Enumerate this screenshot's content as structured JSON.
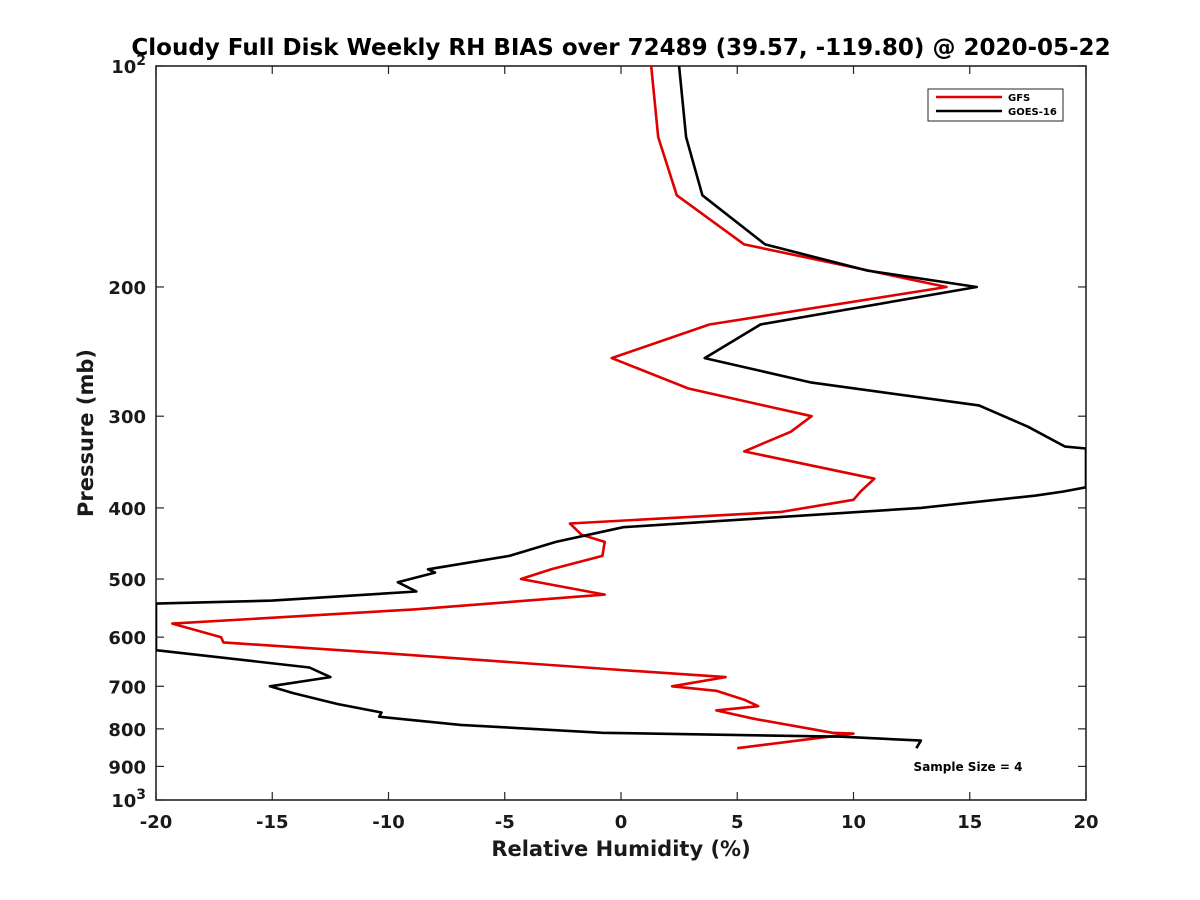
{
  "chart_data": {
    "type": "line",
    "title": "Cloudy Full Disk Weekly RH BIAS over 72489 (39.57, -119.80) @ 2020-05-22",
    "xlabel": "Relative Humidity (%)",
    "ylabel": "Pressure (mb)",
    "xlim": [
      -20,
      20
    ],
    "ylim": [
      100,
      1000
    ],
    "y_scale": "log",
    "y_reversed": true,
    "grid": false,
    "legend_position": "top-right",
    "x_ticks": [
      "-20",
      "-15",
      "-10",
      "-5",
      "0",
      "5",
      "10",
      "15",
      "20"
    ],
    "y_ticks": [
      {
        "value": 100,
        "base": "10",
        "exp": "2"
      },
      {
        "value": 200,
        "label": "200"
      },
      {
        "value": 300,
        "label": "300"
      },
      {
        "value": 400,
        "label": "400"
      },
      {
        "value": 500,
        "label": "500"
      },
      {
        "value": 600,
        "label": "600"
      },
      {
        "value": 700,
        "label": "700"
      },
      {
        "value": 800,
        "label": "800"
      },
      {
        "value": 900,
        "label": "900"
      },
      {
        "value": 1000,
        "base": "10",
        "exp": "3"
      }
    ],
    "series": [
      {
        "name": "GFS",
        "color": "#e00000",
        "points": [
          [
            1.3,
            100
          ],
          [
            1.6,
            125
          ],
          [
            2.4,
            150
          ],
          [
            5.3,
            175
          ],
          [
            14.0,
            200
          ],
          [
            3.8,
            225
          ],
          [
            -0.4,
            250
          ],
          [
            2.9,
            275
          ],
          [
            8.2,
            300
          ],
          [
            7.3,
            315
          ],
          [
            5.3,
            335
          ],
          [
            10.9,
            365
          ],
          [
            10.3,
            380
          ],
          [
            10.0,
            390
          ],
          [
            6.9,
            405
          ],
          [
            -2.2,
            420
          ],
          [
            -1.7,
            435
          ],
          [
            -0.7,
            445
          ],
          [
            -0.8,
            465
          ],
          [
            -3.0,
            485
          ],
          [
            -4.3,
            500
          ],
          [
            -0.7,
            525
          ],
          [
            -8.9,
            550
          ],
          [
            -19.3,
            575
          ],
          [
            -17.2,
            600
          ],
          [
            -17.1,
            610
          ],
          [
            -10.5,
            630
          ],
          [
            0.0,
            665
          ],
          [
            4.5,
            680
          ],
          [
            2.2,
            700
          ],
          [
            4.1,
            710
          ],
          [
            5.3,
            730
          ],
          [
            5.9,
            745
          ],
          [
            4.1,
            755
          ],
          [
            5.7,
            775
          ],
          [
            9.1,
            810
          ],
          [
            10.0,
            812
          ],
          [
            5.0,
            850
          ]
        ]
      },
      {
        "name": "GOES-16",
        "color": "#000000",
        "points": [
          [
            2.5,
            100
          ],
          [
            2.8,
            125
          ],
          [
            3.5,
            150
          ],
          [
            6.2,
            175
          ],
          [
            10.6,
            190
          ],
          [
            15.3,
            200
          ],
          [
            6.0,
            225
          ],
          [
            3.6,
            250
          ],
          [
            8.2,
            270
          ],
          [
            15.4,
            290
          ],
          [
            17.5,
            310
          ],
          [
            19.1,
            330
          ],
          [
            20.0,
            332
          ],
          [
            20.0,
            375
          ],
          [
            19.0,
            380
          ],
          [
            17.8,
            385
          ],
          [
            12.9,
            400
          ],
          [
            0.1,
            425
          ],
          [
            -2.8,
            445
          ],
          [
            -4.8,
            465
          ],
          [
            -8.3,
            485
          ],
          [
            -8.0,
            490
          ],
          [
            -9.6,
            505
          ],
          [
            -8.8,
            520
          ],
          [
            -15.0,
            535
          ],
          [
            -20.0,
            540
          ],
          [
            -20.0,
            625
          ],
          [
            -13.4,
            660
          ],
          [
            -12.5,
            680
          ],
          [
            -15.1,
            700
          ],
          [
            -14.1,
            715
          ],
          [
            -12.2,
            740
          ],
          [
            -10.3,
            760
          ],
          [
            -10.4,
            770
          ],
          [
            -6.9,
            790
          ],
          [
            -0.8,
            810
          ],
          [
            9.5,
            820
          ],
          [
            12.9,
            830
          ],
          [
            12.7,
            850
          ]
        ]
      }
    ],
    "annotation": "Sample Size = 4"
  }
}
